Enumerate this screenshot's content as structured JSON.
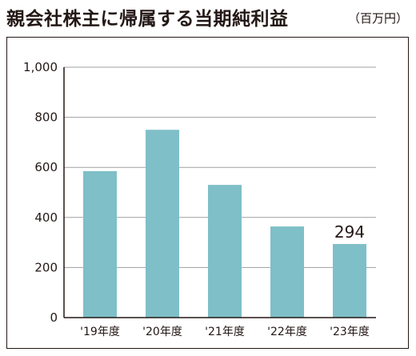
{
  "title": "親会社株主に帰属する当期純利益",
  "unit": "（百万円）",
  "chart_data": {
    "type": "bar",
    "title": "親会社株主に帰属する当期純利益",
    "unit": "（百万円）",
    "categories": [
      "'19年度",
      "'20年度",
      "'21年度",
      "'22年度",
      "'23年度"
    ],
    "values": [
      585,
      750,
      530,
      364,
      294
    ],
    "data_labels": [
      null,
      null,
      null,
      null,
      "294"
    ],
    "ylim": [
      0,
      1000
    ],
    "yticks": [
      0,
      200,
      400,
      600,
      800,
      1000
    ],
    "ytick_labels": [
      "0",
      "200",
      "400",
      "600",
      "800",
      "1,000"
    ],
    "grid": true,
    "bar_color": "#7fbfc8",
    "grid_color": "#9fa0a0"
  }
}
